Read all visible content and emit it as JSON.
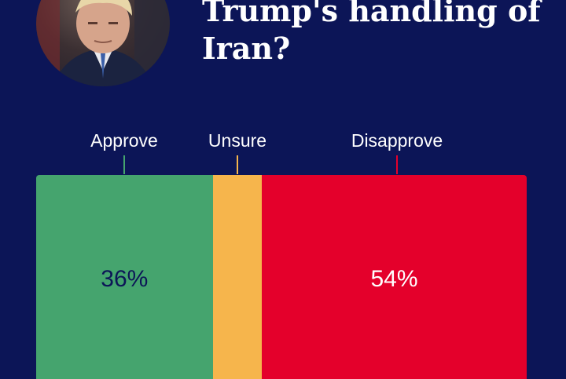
{
  "header": {
    "title_lines": [
      "Trump's handling of",
      "Iran?"
    ]
  },
  "portrait": {
    "subject": "trump-portrait"
  },
  "chart_data": {
    "type": "bar",
    "orientation": "stacked-horizontal",
    "categories": [
      "Approve",
      "Unsure",
      "Disapprove"
    ],
    "values": [
      36,
      10,
      54
    ],
    "value_labels": [
      "36%",
      "",
      "54%"
    ],
    "colors": [
      "#45a46e",
      "#f6b54c",
      "#e4002b"
    ],
    "label_colors": [
      "#0c1557",
      "#0c1557",
      "#ffffff"
    ],
    "legend": "top"
  }
}
